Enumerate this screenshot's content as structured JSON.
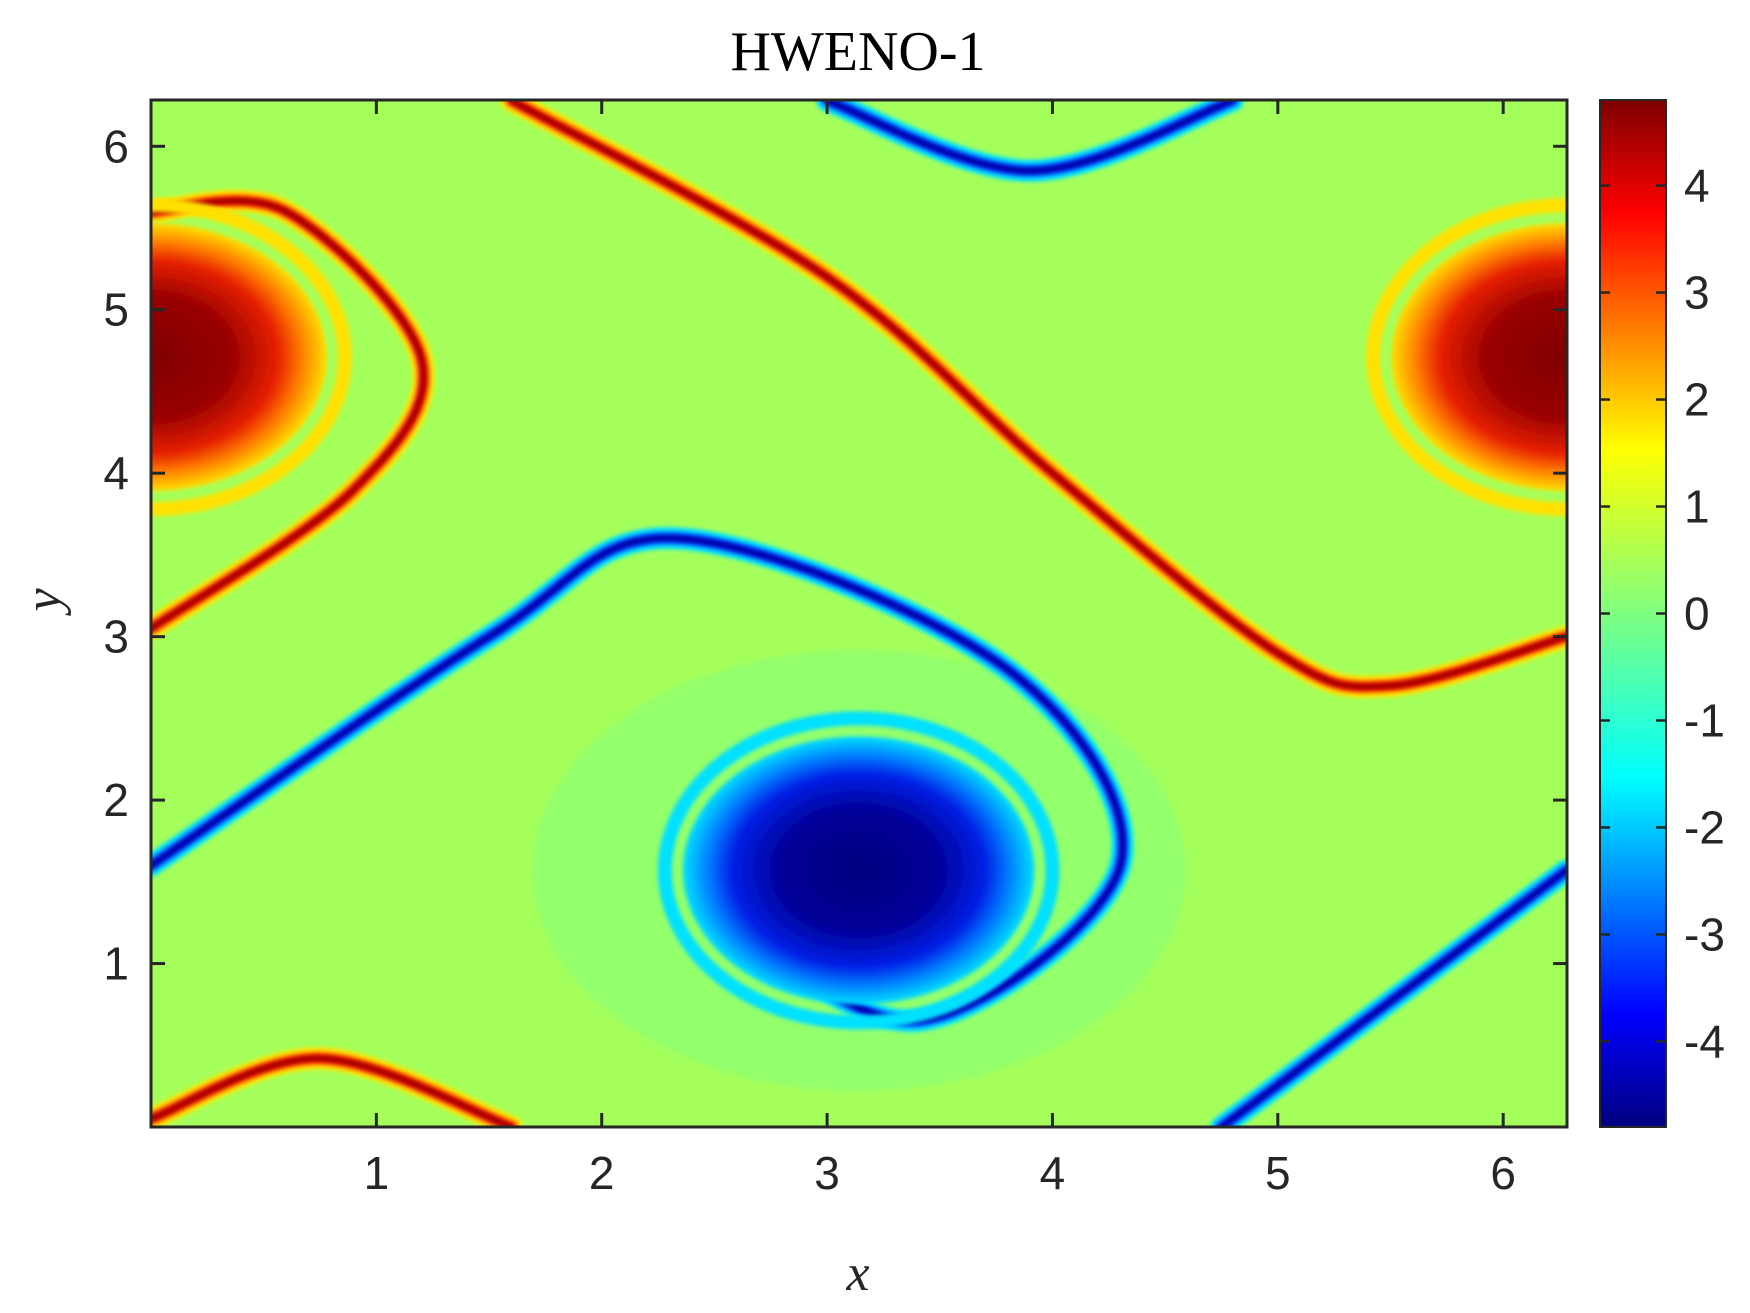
{
  "chart_data": {
    "type": "heatmap",
    "title": "HWENO-1",
    "xlabel": "x",
    "ylabel": "y",
    "xlim": [
      0,
      6.2832
    ],
    "ylim": [
      0,
      6.2832
    ],
    "xticks": [
      1,
      2,
      3,
      4,
      5,
      6
    ],
    "yticks": [
      1,
      2,
      3,
      4,
      5,
      6
    ],
    "colorbar": {
      "colormap": "jet",
      "limits": [
        -4.8,
        4.8
      ],
      "ticks": [
        -4,
        -3,
        -2,
        -1,
        0,
        1,
        2,
        3,
        4
      ],
      "background_value": 0.35
    },
    "features": [
      {
        "name": "positive vortex core",
        "center": [
          6.2832,
          4.71
        ],
        "peak_value": 4.7,
        "wraps_periodically": true
      },
      {
        "name": "negative vortex core",
        "center": [
          3.14,
          1.57
        ],
        "peak_value": -4.7
      },
      {
        "name": "positive shear layer",
        "path": [
          [
            0,
            3.05
          ],
          [
            0.9,
            3.9
          ],
          [
            1.2,
            4.7
          ],
          [
            0.6,
            5.6
          ],
          [
            0,
            5.6
          ]
        ]
      },
      {
        "name": "positive diagonal layer",
        "path": [
          [
            1.6,
            6.28
          ],
          [
            3.0,
            5.2
          ],
          [
            4.0,
            4.0
          ],
          [
            5.0,
            2.9
          ],
          [
            5.5,
            2.7
          ],
          [
            6.28,
            3.0
          ]
        ]
      },
      {
        "name": "negative shear layer",
        "path": [
          [
            0,
            1.6
          ],
          [
            1.5,
            3.0
          ],
          [
            2.35,
            3.6
          ],
          [
            3.8,
            2.8
          ],
          [
            4.3,
            1.6
          ],
          [
            3.4,
            0.65
          ],
          [
            2.6,
            1.4
          ],
          [
            3.1,
            2.25
          ]
        ]
      },
      {
        "name": "negative top arc",
        "path": [
          [
            3.0,
            6.28
          ],
          [
            3.9,
            5.85
          ],
          [
            4.8,
            6.28
          ]
        ]
      },
      {
        "name": "negative lower-right layer",
        "path": [
          [
            4.75,
            0
          ],
          [
            6.28,
            1.57
          ]
        ]
      },
      {
        "name": "positive bottom arc",
        "path": [
          [
            0,
            0.05
          ],
          [
            0.75,
            0.42
          ],
          [
            1.6,
            0
          ]
        ]
      }
    ]
  }
}
